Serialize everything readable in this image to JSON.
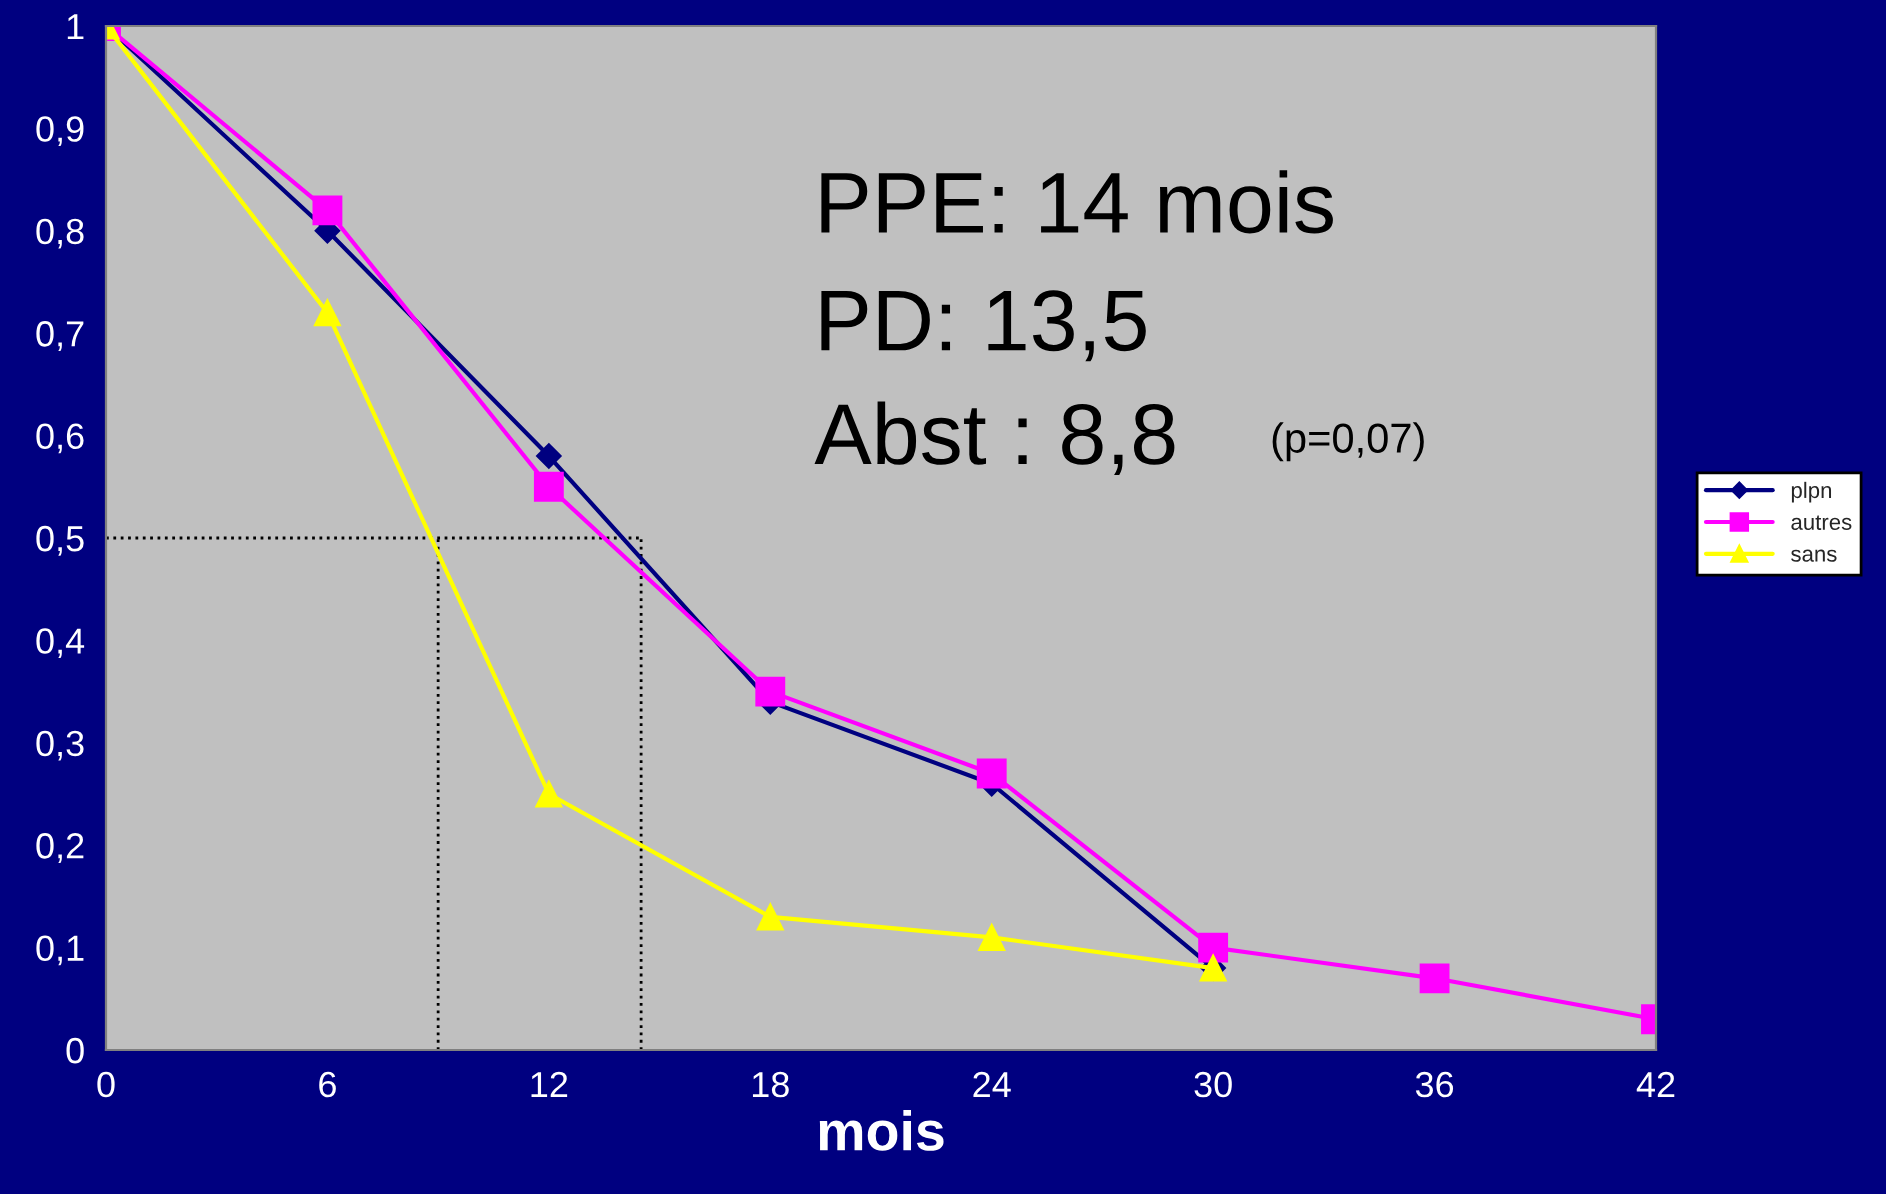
{
  "chart_data": {
    "type": "line",
    "xlabel": "mois",
    "series": [
      {
        "name": "plpn",
        "color": "#000080",
        "marker": "diamond",
        "x": [
          0,
          6,
          12,
          18,
          24,
          30
        ],
        "values": [
          1,
          0.8,
          0.58,
          0.34,
          0.26,
          0.08
        ]
      },
      {
        "name": "autres",
        "color": "#ff00ff",
        "marker": "square",
        "x": [
          0,
          6,
          12,
          18,
          24,
          30,
          36,
          42
        ],
        "values": [
          1,
          0.82,
          0.55,
          0.35,
          0.27,
          0.1,
          0.07,
          0.03
        ]
      },
      {
        "name": "sans",
        "color": "#ffff00",
        "marker": "triangle",
        "x": [
          0,
          6,
          12,
          18,
          24,
          30
        ],
        "values": [
          1,
          0.72,
          0.25,
          0.13,
          0.11,
          0.08
        ]
      }
    ],
    "xlim": [
      0,
      42
    ],
    "ylim": [
      0,
      1
    ],
    "xticks": [
      0,
      6,
      12,
      18,
      24,
      30,
      36,
      42
    ],
    "yticks": [
      0,
      {
        "value": 0.1,
        "label": "0,1"
      },
      {
        "value": 0.2,
        "label": "0,2"
      },
      {
        "value": 0.3,
        "label": "0,3"
      },
      {
        "value": 0.4,
        "label": "0,4"
      },
      {
        "value": 0.5,
        "label": "0,5"
      },
      {
        "value": 0.6,
        "label": "0,6"
      },
      {
        "value": 0.7,
        "label": "0,7"
      },
      {
        "value": 0.8,
        "label": "0,8"
      },
      {
        "value": 0.9,
        "label": "0,9"
      },
      1
    ],
    "ref_lines": [
      {
        "axis": "y",
        "value": 0.5,
        "color": "#000000",
        "line_style": "dotted"
      },
      {
        "axis": "x",
        "value": 9,
        "color": "#000000",
        "line_style": "dotted"
      },
      {
        "axis": "x",
        "value": 14.5,
        "color": "#000000",
        "line_style": "dotted"
      }
    ],
    "annotations": [
      "PPE: 14 mois",
      "PD: 13,5",
      "Abst : 8,8",
      "(p=0,07)"
    ],
    "grid": false,
    "legend": "right"
  }
}
